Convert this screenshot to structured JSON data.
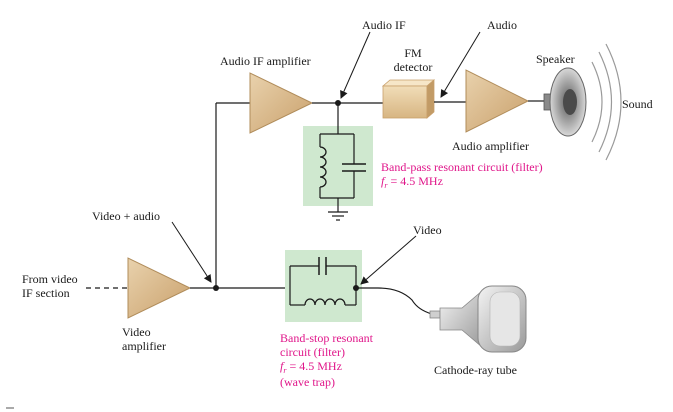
{
  "labels": {
    "from_video_line1": "From video",
    "from_video_line2": "IF section",
    "video_amplifier_line1": "Video",
    "video_amplifier_line2": "amplifier",
    "video_plus_audio": "Video + audio",
    "audio_if_amplifier": "Audio IF amplifier",
    "audio_if": "Audio IF",
    "fm_detector_line1": "FM",
    "fm_detector_line2": "detector",
    "audio": "Audio",
    "speaker": "Speaker",
    "sound": "Sound",
    "audio_amplifier": "Audio amplifier",
    "video": "Video",
    "cathode_ray_tube": "Cathode-ray tube"
  },
  "band_pass": {
    "title": "Band-pass resonant circuit (filter)",
    "freq_f": "f",
    "freq_sub": "r",
    "freq_value": " = 4.5 MHz"
  },
  "band_stop": {
    "line1": "Band-stop resonant",
    "line2": "circuit (filter)",
    "freq_f": "f",
    "freq_sub": "r",
    "freq_value": " = 4.5 MHz",
    "line4": "(wave trap)"
  },
  "colors": {
    "filter_fill": "#cfe8cf",
    "annotation": "#e0168a",
    "amplifier_fill": "#d9b98a",
    "wire": "#1a1a1a"
  }
}
